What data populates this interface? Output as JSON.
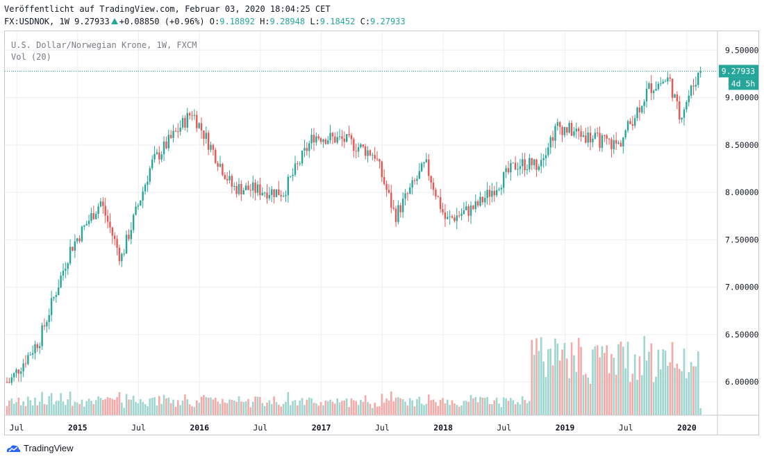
{
  "header": {
    "published": "Veröffentlicht auf TradingView.com, Februar 03, 2020 18:04:25 CET",
    "symbol": "FX:USDNOK, 1W",
    "last": "9.27933",
    "change": "+0.08850",
    "change_pct": "(+0.96%)",
    "o_label": "O:",
    "o_value": "9.18892",
    "h_label": "H:",
    "h_value": "9.28948",
    "l_label": "L:",
    "l_value": "9.18452",
    "c_label": "C:",
    "c_value": "9.27933"
  },
  "legend": {
    "line1": "U.S. Dollar/Norwegian Krone, 1W, FXCM",
    "line2": "Vol (20)"
  },
  "badges": {
    "price": "9.27933",
    "countdown": "4d 5h"
  },
  "footer": {
    "brand": "TradingView"
  },
  "colors": {
    "up": "#26a69a",
    "down": "#ef5350",
    "vol_up": "#9fd5cf",
    "vol_down": "#f7a9a7",
    "grid": "#eceef2",
    "axis_text": "#131722"
  },
  "chart_data": {
    "type": "candlestick",
    "title": "U.S. Dollar/Norwegian Krone, 1W, FXCM",
    "ylim": [
      5.65,
      9.7
    ],
    "y_ticks": [
      "9.50000",
      "9.00000",
      "8.50000",
      "8.00000",
      "7.50000",
      "7.00000",
      "6.50000",
      "6.00000"
    ],
    "x_ticks": [
      "Jul",
      "2015",
      "Jul",
      "2016",
      "Jul",
      "2017",
      "Jul",
      "2018",
      "Jul",
      "2019",
      "Jul",
      "2020"
    ],
    "last_price": 9.27933,
    "series_close": [
      {
        "date": "2014-06",
        "close": 6.0
      },
      {
        "date": "2014-09",
        "close": 6.45
      },
      {
        "date": "2014-12",
        "close": 7.4
      },
      {
        "date": "2015-03",
        "close": 7.9
      },
      {
        "date": "2015-05",
        "close": 7.3
      },
      {
        "date": "2015-08",
        "close": 8.3
      },
      {
        "date": "2015-12",
        "close": 8.85
      },
      {
        "date": "2016-04",
        "close": 8.05
      },
      {
        "date": "2016-09",
        "close": 8.0
      },
      {
        "date": "2016-12",
        "close": 8.6
      },
      {
        "date": "2017-03",
        "close": 8.55
      },
      {
        "date": "2017-06",
        "close": 8.4
      },
      {
        "date": "2017-08",
        "close": 7.75
      },
      {
        "date": "2017-11",
        "close": 8.3
      },
      {
        "date": "2018-01",
        "close": 7.7
      },
      {
        "date": "2018-04",
        "close": 7.85
      },
      {
        "date": "2018-08",
        "close": 8.3
      },
      {
        "date": "2018-10",
        "close": 8.3
      },
      {
        "date": "2018-12",
        "close": 8.7
      },
      {
        "date": "2019-04",
        "close": 8.55
      },
      {
        "date": "2019-06",
        "close": 8.5
      },
      {
        "date": "2019-09",
        "close": 9.1
      },
      {
        "date": "2019-11",
        "close": 9.2
      },
      {
        "date": "2019-12",
        "close": 8.8
      },
      {
        "date": "2020-02",
        "close": 9.28
      }
    ]
  }
}
